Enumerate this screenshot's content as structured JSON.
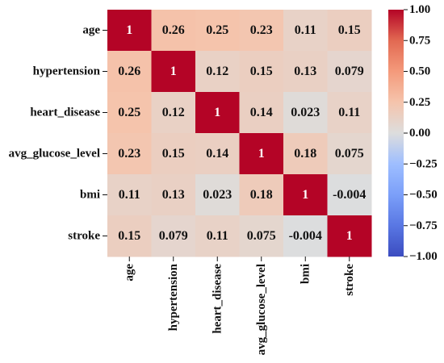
{
  "chart_data": {
    "type": "heatmap",
    "title": "",
    "xlabel": "",
    "ylabel": "",
    "variables": [
      "age",
      "hypertension",
      "heart_disease",
      "avg_glucose_level",
      "bmi",
      "stroke"
    ],
    "matrix": [
      [
        1,
        0.26,
        0.25,
        0.23,
        0.11,
        0.15
      ],
      [
        0.26,
        1,
        0.12,
        0.15,
        0.13,
        0.079
      ],
      [
        0.25,
        0.12,
        1,
        0.14,
        0.023,
        0.11
      ],
      [
        0.23,
        0.15,
        0.14,
        1,
        0.18,
        0.075
      ],
      [
        0.11,
        0.13,
        0.023,
        0.18,
        1,
        -0.004
      ],
      [
        0.15,
        0.079,
        0.11,
        0.075,
        -0.004,
        1
      ]
    ],
    "cell_text": [
      [
        "1",
        "0.26",
        "0.25",
        "0.23",
        "0.11",
        "0.15"
      ],
      [
        "0.26",
        "1",
        "0.12",
        "0.15",
        "0.13",
        "0.079"
      ],
      [
        "0.25",
        "0.12",
        "1",
        "0.14",
        "0.023",
        "0.11"
      ],
      [
        "0.23",
        "0.15",
        "0.14",
        "1",
        "0.18",
        "0.075"
      ],
      [
        "0.11",
        "0.13",
        "0.023",
        "0.18",
        "1",
        "-0.004"
      ],
      [
        "0.15",
        "0.079",
        "0.11",
        "0.075",
        "-0.004",
        "1"
      ]
    ],
    "colorbar": {
      "range": [
        -1,
        1
      ],
      "ticks": [
        1.0,
        0.75,
        0.5,
        0.25,
        0.0,
        -0.25,
        -0.5,
        -0.75,
        -1.0
      ],
      "tick_labels": [
        "1.00",
        "0.75",
        "0.50",
        "0.25",
        "0.00",
        "−0.25",
        "−0.50",
        "−0.75",
        "−1.00"
      ],
      "colormap": "coolwarm",
      "colors": {
        "low": "#3b4cc0",
        "mid": "#dddddd",
        "high": "#b40426"
      }
    }
  }
}
